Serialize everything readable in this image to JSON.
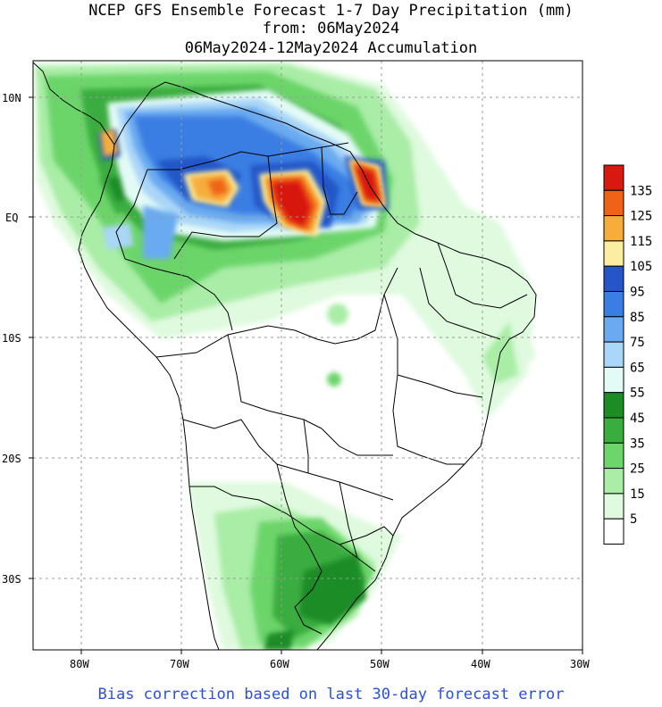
{
  "header": {
    "title_line1": "NCEP GFS Ensemble Forecast 1-7 Day Precipitation (mm)",
    "title_line2": "from: 06May2024",
    "title_line3": "06May2024-12May2024 Accumulation"
  },
  "map": {
    "lat_labels": [
      "10N",
      "EQ",
      "10S",
      "20S",
      "30S"
    ],
    "lon_labels": [
      "80W",
      "70W",
      "60W",
      "50W",
      "40W",
      "30W"
    ]
  },
  "legend": {
    "labels": [
      "135",
      "125",
      "115",
      "105",
      "95",
      "85",
      "75",
      "65",
      "55",
      "45",
      "35",
      "25",
      "15",
      "5"
    ],
    "colors": [
      "#d7190f",
      "#ef6316",
      "#f6ad3c",
      "#fbeea0",
      "#2456c8",
      "#3b7ee3",
      "#6aaaf0",
      "#aad6f8",
      "#e3fbf6",
      "#1c8c25",
      "#3aad3f",
      "#6cd56b",
      "#a9eda6",
      "#dffade",
      "#ffffff"
    ]
  },
  "footer": {
    "note": "Bias correction based on last 30-day forecast error"
  }
}
